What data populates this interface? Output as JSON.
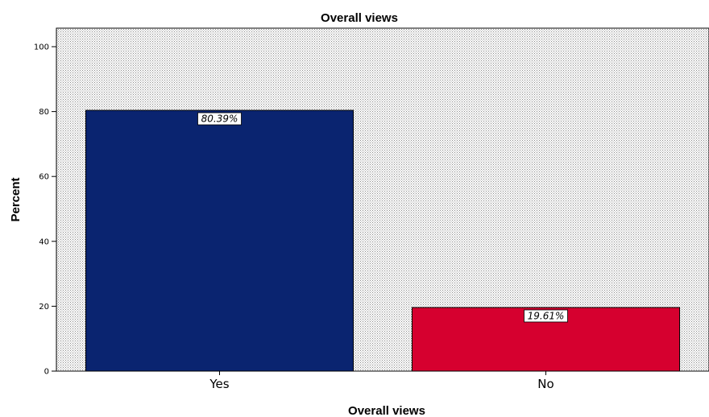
{
  "chart_data": {
    "type": "bar",
    "title": "Overall views",
    "xlabel": "Overall views",
    "ylabel": "Percent",
    "categories": [
      "Yes",
      "No"
    ],
    "values": [
      80.39,
      19.61
    ],
    "data_labels": [
      "80.39%",
      "19.61%"
    ],
    "colors": [
      "#0a2470",
      "#d6002f"
    ],
    "ylim": [
      0,
      105
    ],
    "yticks": [
      0,
      20,
      40,
      60,
      80,
      100
    ],
    "grid": false,
    "legend": "none",
    "plot_background": "dotted-gray"
  }
}
